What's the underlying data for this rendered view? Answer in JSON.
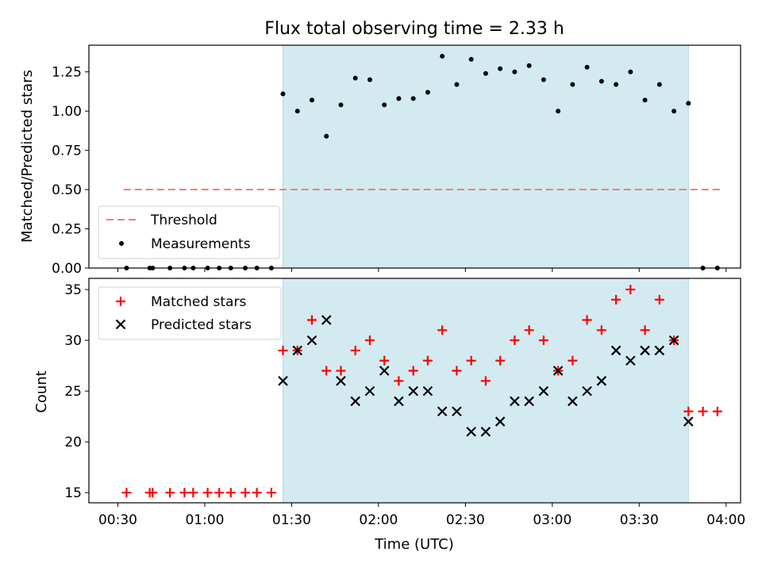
{
  "chart_data": [
    {
      "type": "scatter",
      "title": "Flux total observing time = 2.33 h",
      "xlabel": "",
      "ylabel": "Matched/Predicted stars",
      "ylim": [
        0,
        1.42
      ],
      "yticks": [
        0.0,
        0.25,
        0.5,
        0.75,
        1.0,
        1.25
      ],
      "ytick_labels": [
        "0.00",
        "0.25",
        "0.50",
        "0.75",
        "1.00",
        "1.25"
      ],
      "xlim": [
        "00:20",
        "04:05"
      ],
      "grid": false,
      "legend_position": "lower-left",
      "shaded_region": {
        "x_start": "01:27",
        "x_end": "03:47",
        "color": "#d3eaf1"
      },
      "threshold": {
        "name": "Threshold",
        "x_start": "00:32",
        "x_end": "03:59",
        "value": 0.5,
        "color": "#f08080"
      },
      "series": [
        {
          "name": "Measurements",
          "color": "#000000",
          "x": [
            "00:33",
            "00:41",
            "00:42",
            "00:48",
            "00:53",
            "00:56",
            "01:01",
            "01:05",
            "01:09",
            "01:14",
            "01:18",
            "01:23",
            "01:27",
            "01:32",
            "01:37",
            "01:42",
            "01:47",
            "01:52",
            "01:57",
            "02:02",
            "02:07",
            "02:12",
            "02:17",
            "02:22",
            "02:27",
            "02:32",
            "02:37",
            "02:42",
            "02:47",
            "02:52",
            "02:57",
            "03:02",
            "03:07",
            "03:12",
            "03:17",
            "03:22",
            "03:27",
            "03:32",
            "03:37",
            "03:42",
            "03:47",
            "03:52",
            "03:57"
          ],
          "values": [
            0,
            0,
            0,
            0,
            0,
            0,
            0,
            0,
            0,
            0,
            0,
            0,
            1.11,
            1.0,
            1.07,
            0.84,
            1.04,
            1.21,
            1.2,
            1.04,
            1.08,
            1.08,
            1.12,
            1.35,
            1.17,
            1.33,
            1.24,
            1.27,
            1.25,
            1.29,
            1.2,
            1.0,
            1.17,
            1.28,
            1.19,
            1.17,
            1.25,
            1.07,
            1.17,
            1.0,
            1.05,
            0,
            0
          ]
        }
      ]
    },
    {
      "type": "scatter",
      "title": "",
      "xlabel": "Time (UTC)",
      "ylabel": "Count",
      "ylim": [
        14,
        36.1
      ],
      "yticks": [
        15,
        20,
        25,
        30,
        35
      ],
      "ytick_labels": [
        "15",
        "20",
        "25",
        "30",
        "35"
      ],
      "xlim": [
        "00:20",
        "04:05"
      ],
      "xticks": [
        "00:30",
        "01:00",
        "01:30",
        "02:00",
        "02:30",
        "03:00",
        "03:30",
        "04:00"
      ],
      "grid": false,
      "legend_position": "upper-left",
      "shaded_region": {
        "x_start": "01:27",
        "x_end": "03:47",
        "color": "#d3eaf1"
      },
      "series": [
        {
          "name": "Matched stars",
          "marker": "plus",
          "color": "#ff0000",
          "x": [
            "00:33",
            "00:41",
            "00:42",
            "00:48",
            "00:53",
            "00:56",
            "01:01",
            "01:05",
            "01:09",
            "01:14",
            "01:18",
            "01:23",
            "01:27",
            "01:32",
            "01:37",
            "01:42",
            "01:47",
            "01:52",
            "01:57",
            "02:02",
            "02:07",
            "02:12",
            "02:17",
            "02:22",
            "02:27",
            "02:32",
            "02:37",
            "02:42",
            "02:47",
            "02:52",
            "02:57",
            "03:02",
            "03:07",
            "03:12",
            "03:17",
            "03:22",
            "03:27",
            "03:32",
            "03:37",
            "03:42",
            "03:47",
            "03:52",
            "03:57"
          ],
          "values": [
            15,
            15,
            15,
            15,
            15,
            15,
            15,
            15,
            15,
            15,
            15,
            15,
            29,
            29,
            32,
            27,
            27,
            29,
            30,
            28,
            26,
            27,
            28,
            31,
            27,
            28,
            26,
            28,
            30,
            31,
            30,
            27,
            28,
            32,
            31,
            34,
            35,
            31,
            34,
            30,
            23,
            23,
            23
          ]
        },
        {
          "name": "Predicted stars",
          "marker": "x",
          "color": "#000000",
          "x": [
            "01:27",
            "01:32",
            "01:37",
            "01:42",
            "01:47",
            "01:52",
            "01:57",
            "02:02",
            "02:07",
            "02:12",
            "02:17",
            "02:22",
            "02:27",
            "02:32",
            "02:37",
            "02:42",
            "02:47",
            "02:52",
            "02:57",
            "03:02",
            "03:07",
            "03:12",
            "03:17",
            "03:22",
            "03:27",
            "03:32",
            "03:37",
            "03:42",
            "03:47"
          ],
          "values": [
            26,
            29,
            30,
            32,
            26,
            24,
            25,
            27,
            24,
            25,
            25,
            23,
            23,
            21,
            21,
            22,
            24,
            24,
            25,
            27,
            24,
            25,
            26,
            29,
            28,
            29,
            29,
            30,
            22
          ]
        }
      ]
    }
  ]
}
